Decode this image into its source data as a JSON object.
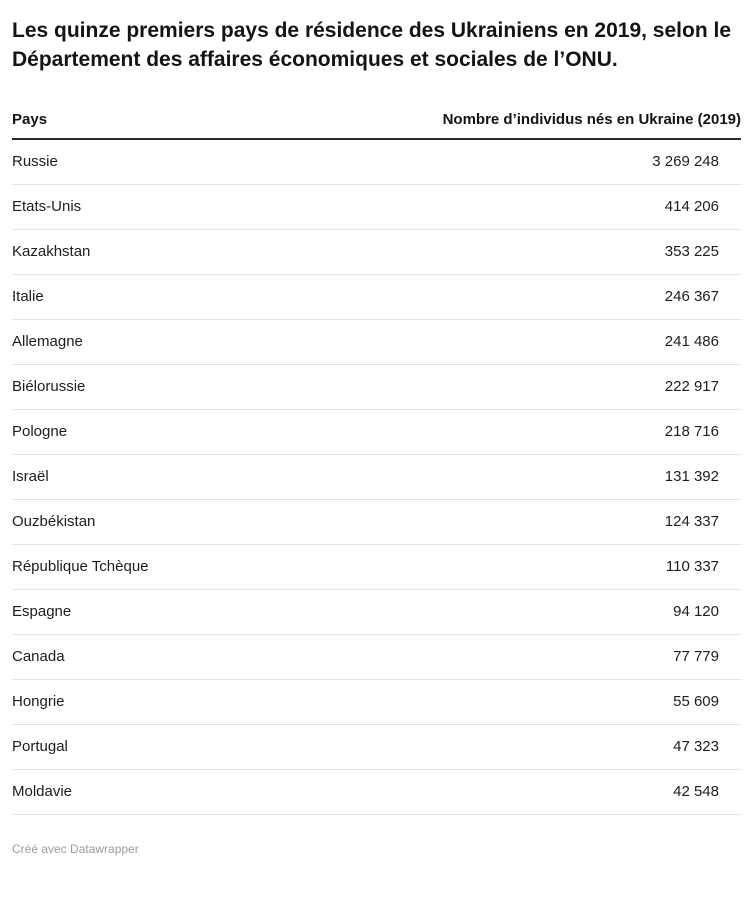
{
  "title": "Les quinze premiers pays de résidence des Ukrainiens en 2019, selon le Département des affaires économiques et sociales de l’ONU.",
  "table": {
    "headers": {
      "pays": "Pays",
      "valeur": "Nombre d’individus nés en Ukraine (2019)"
    },
    "rows": [
      {
        "pays": "Russie",
        "valeur": "3 269 248"
      },
      {
        "pays": "Etats-Unis",
        "valeur": "414 206"
      },
      {
        "pays": "Kazakhstan",
        "valeur": "353 225"
      },
      {
        "pays": "Italie",
        "valeur": "246 367"
      },
      {
        "pays": "Allemagne",
        "valeur": "241 486"
      },
      {
        "pays": "Biélorussie",
        "valeur": "222 917"
      },
      {
        "pays": "Pologne",
        "valeur": "218 716"
      },
      {
        "pays": "Israël",
        "valeur": "131 392"
      },
      {
        "pays": "Ouzbékistan",
        "valeur": "124 337"
      },
      {
        "pays": "République Tchèque",
        "valeur": "110 337"
      },
      {
        "pays": "Espagne",
        "valeur": "94 120"
      },
      {
        "pays": "Canada",
        "valeur": "77 779"
      },
      {
        "pays": "Hongrie",
        "valeur": "55 609"
      },
      {
        "pays": "Portugal",
        "valeur": "47 323"
      },
      {
        "pays": "Moldavie",
        "valeur": "42 548"
      }
    ]
  },
  "footer": "Créé avec Datawrapper",
  "chart_data": {
    "type": "table",
    "title": "Les quinze premiers pays de résidence des Ukrainiens en 2019, selon le Département des affaires économiques et sociales de l’ONU.",
    "columns": [
      "Pays",
      "Nombre d’individus nés en Ukraine (2019)"
    ],
    "rows": [
      [
        "Russie",
        3269248
      ],
      [
        "Etats-Unis",
        414206
      ],
      [
        "Kazakhstan",
        353225
      ],
      [
        "Italie",
        246367
      ],
      [
        "Allemagne",
        241486
      ],
      [
        "Biélorussie",
        222917
      ],
      [
        "Pologne",
        218716
      ],
      [
        "Israël",
        131392
      ],
      [
        "Ouzbékistan",
        124337
      ],
      [
        "République Tchèque",
        110337
      ],
      [
        "Espagne",
        94120
      ],
      [
        "Canada",
        77779
      ],
      [
        "Hongrie",
        55609
      ],
      [
        "Portugal",
        47323
      ],
      [
        "Moldavie",
        42548
      ]
    ],
    "attribution": "Créé avec Datawrapper"
  }
}
